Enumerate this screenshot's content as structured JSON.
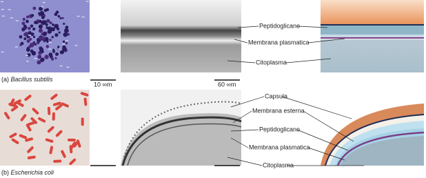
{
  "panel_a": {
    "letter": "(a)",
    "organism": "Bacillus subtilis",
    "scale_left": "10 ∞m",
    "scale_middle": "60 ∞m",
    "labels": [
      "Peptidoglicano",
      "Membrana plasmatica",
      "Citoplasma"
    ]
  },
  "panel_b": {
    "letter": "(b)",
    "organism": "Escherichia coli",
    "labels": [
      "Capsula",
      "Membrana esterna",
      "Peptidoglicano",
      "Membrana plasmatica",
      "Citoplasma"
    ]
  }
}
